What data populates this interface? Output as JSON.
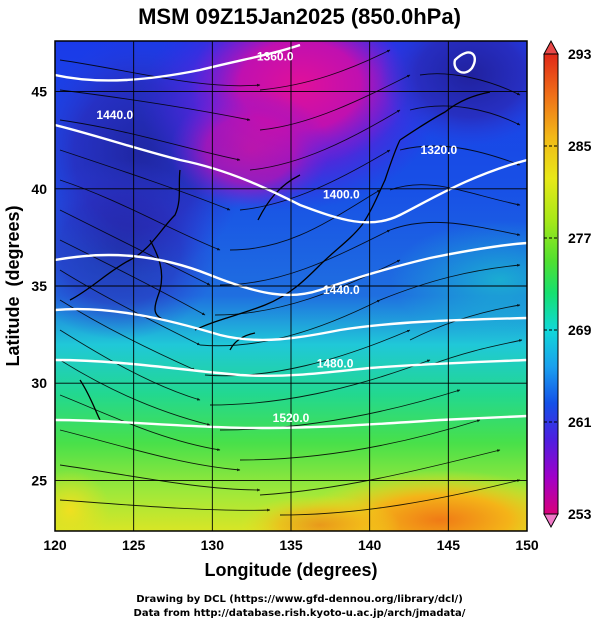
{
  "title": "MSM 09Z15Jan2025 (850.0hPa)",
  "map": {
    "x_label": "Longitude (degrees)",
    "y_label": "Latitude  (degrees)",
    "x_range": [
      120,
      150
    ],
    "y_range": [
      22.4,
      47.6
    ],
    "x_ticks": [
      120,
      125,
      130,
      135,
      140,
      145,
      150
    ],
    "x_tick_labels": [
      "120",
      "125",
      "130",
      "135",
      "140",
      "145",
      "150"
    ],
    "y_ticks": [
      25,
      30,
      35,
      40,
      45
    ],
    "y_tick_labels": [
      "25",
      "30",
      "35",
      "40",
      "45"
    ],
    "grid": true,
    "field": "temperature (K), shaded",
    "overlays": [
      "geopotential height contours (white)",
      "wind streamlines (black)",
      "coastlines"
    ]
  },
  "contour_labels": [
    {
      "text": "1440.0",
      "lon": 123.8,
      "lat": 43.6
    },
    {
      "text": "1360.0",
      "lon": 134.0,
      "lat": 46.6
    },
    {
      "text": "1320.0",
      "lon": 144.4,
      "lat": 41.8
    },
    {
      "text": "1400.0",
      "lon": 138.2,
      "lat": 39.5
    },
    {
      "text": "1440.0",
      "lon": 138.2,
      "lat": 34.6
    },
    {
      "text": "1480.0",
      "lon": 137.8,
      "lat": 30.8
    },
    {
      "text": "1520.0",
      "lon": 135.0,
      "lat": 28.0
    }
  ],
  "colorbar": {
    "ticks": [
      293,
      285,
      277,
      269,
      261,
      253
    ],
    "tick_labels": [
      "293",
      "285",
      "277",
      "269",
      "261",
      "253"
    ],
    "range": [
      253,
      293
    ],
    "colors": [
      "#d8007a",
      "#a000c8",
      "#4f1ee0",
      "#1450e8",
      "#1aa0ee",
      "#10d8d8",
      "#16e070",
      "#50e030",
      "#a8e818",
      "#e8e818",
      "#f2b818",
      "#f07018",
      "#e02818"
    ]
  },
  "credits": {
    "line1": "Drawing by DCL (https://www.gfd-dennou.org/library/dcl/)",
    "line2": "Data from http://database.rish.kyoto-u.ac.jp/arch/jmadata/"
  }
}
